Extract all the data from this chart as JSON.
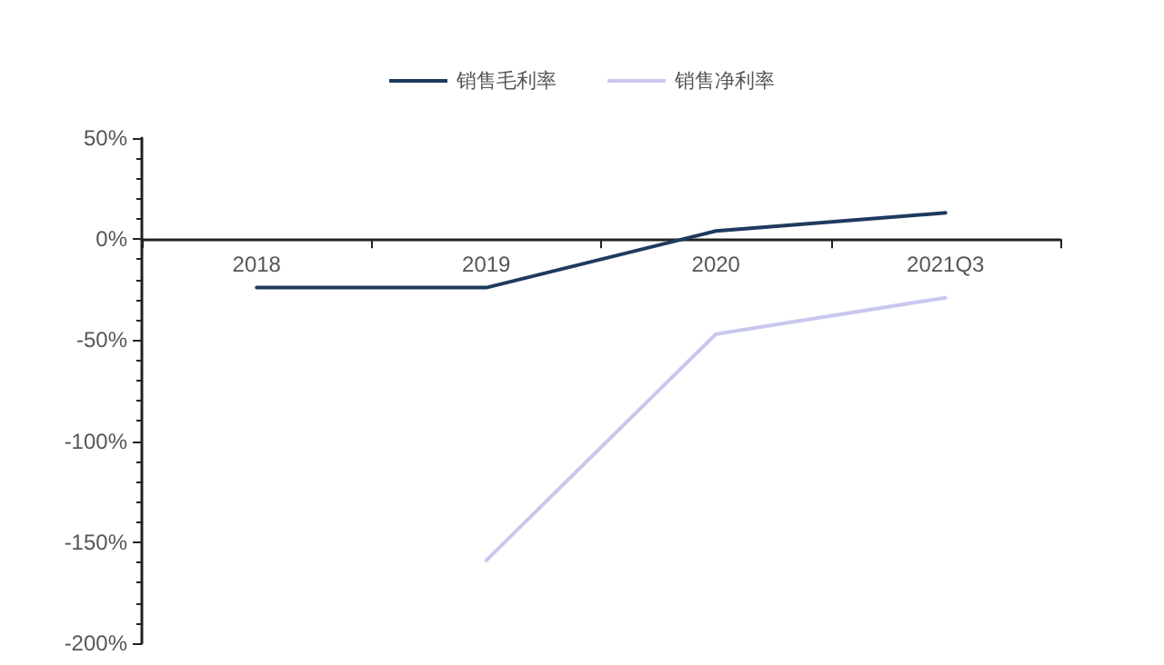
{
  "chart_data": {
    "type": "line",
    "categories": [
      "2018",
      "2019",
      "2020",
      "2021Q3"
    ],
    "series": [
      {
        "name": "销售毛利率",
        "color": "#1f3a5f",
        "values": [
          -24,
          -24,
          4,
          13
        ]
      },
      {
        "name": "销售净利率",
        "color": "#c8c8ee",
        "values": [
          null,
          -159,
          -47,
          -29
        ]
      }
    ],
    "ylim": [
      -200,
      50
    ],
    "yticks": [
      {
        "value": -200,
        "label": "-200%"
      },
      {
        "value": -150,
        "label": "-150%"
      },
      {
        "value": -100,
        "label": "-100%"
      },
      {
        "value": -50,
        "label": "-50%"
      },
      {
        "value": 0,
        "label": "0%"
      },
      {
        "value": 50,
        "label": "50%"
      }
    ],
    "grid": false,
    "legend": "top",
    "marker": "none",
    "line_style": "solid"
  }
}
